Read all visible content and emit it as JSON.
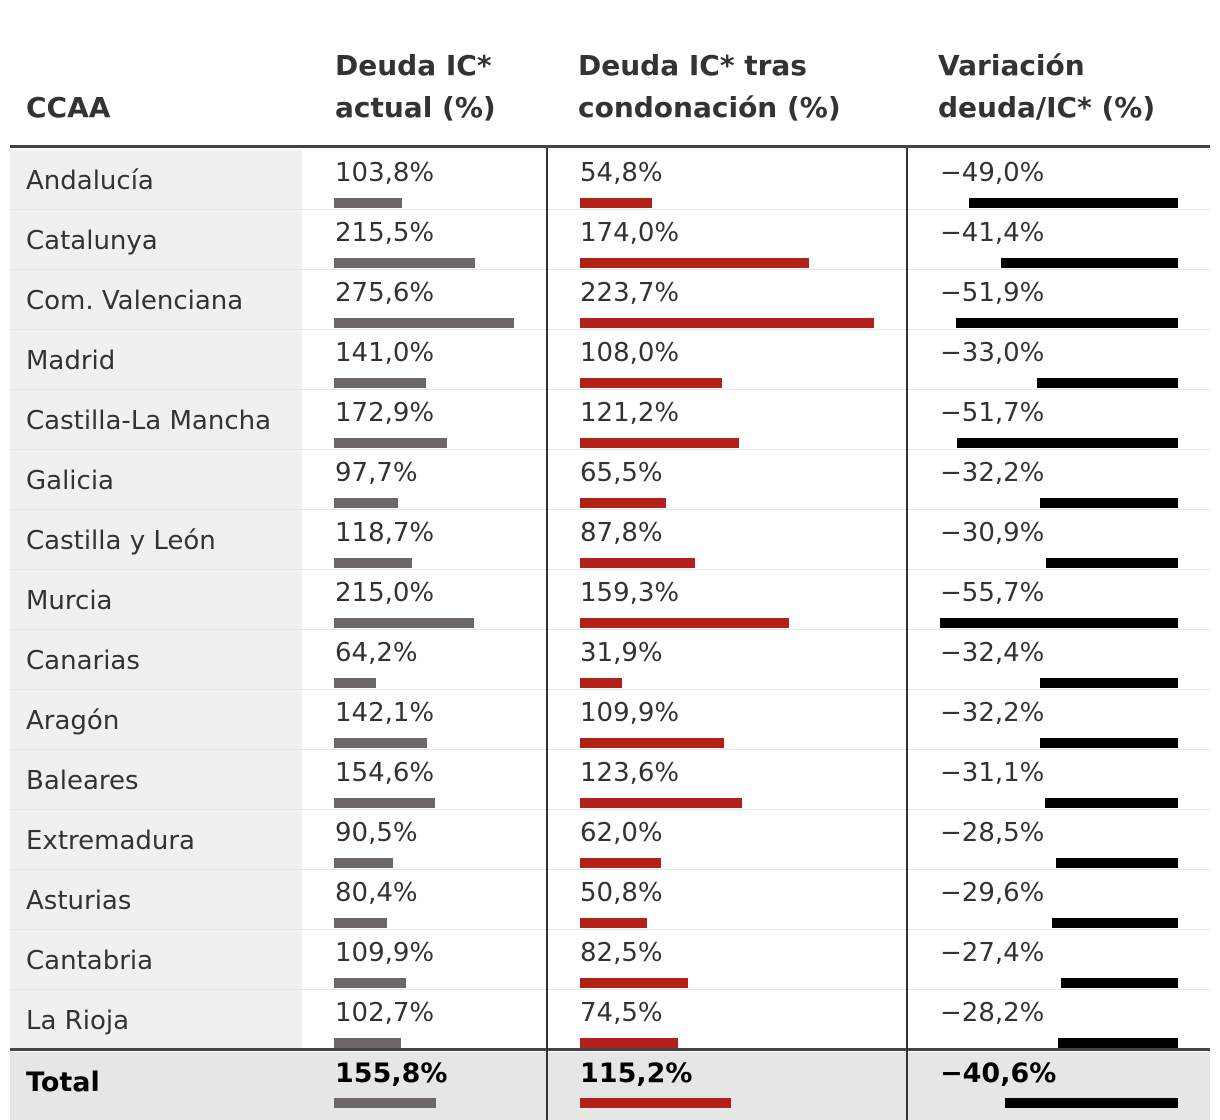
{
  "header": {
    "col_ccaa": "CCAA",
    "col_actual_l1": "Deuda IC*",
    "col_actual_l2": "actual (%)",
    "col_tras_l1": "Deuda IC* tras",
    "col_tras_l2": "condonación (%)",
    "col_var_l1": "Variación",
    "col_var_l2": "deuda/IC* (%)"
  },
  "colors": {
    "actual": "#6d6868",
    "tras": "#b3201a",
    "variacion": "#000000"
  },
  "chart_data": {
    "type": "table",
    "columns": [
      "CCAA",
      "Deuda IC* actual (%)",
      "Deuda IC* tras condonación (%)",
      "Variación deuda/IC* (%)"
    ],
    "rows": [
      {
        "ccaa": "Andalucía",
        "actual": 103.8,
        "actual_label": "103,8%",
        "tras": 54.8,
        "tras_label": "54,8%",
        "variacion": -49.0,
        "variacion_label": "−49,0%"
      },
      {
        "ccaa": "Catalunya",
        "actual": 215.5,
        "actual_label": "215,5%",
        "tras": 174.0,
        "tras_label": "174,0%",
        "variacion": -41.4,
        "variacion_label": "−41,4%"
      },
      {
        "ccaa": "Com. Valenciana",
        "actual": 275.6,
        "actual_label": "275,6%",
        "tras": 223.7,
        "tras_label": "223,7%",
        "variacion": -51.9,
        "variacion_label": "−51,9%"
      },
      {
        "ccaa": "Madrid",
        "actual": 141.0,
        "actual_label": "141,0%",
        "tras": 108.0,
        "tras_label": "108,0%",
        "variacion": -33.0,
        "variacion_label": "−33,0%"
      },
      {
        "ccaa": "Castilla-La Mancha",
        "actual": 172.9,
        "actual_label": "172,9%",
        "tras": 121.2,
        "tras_label": "121,2%",
        "variacion": -51.7,
        "variacion_label": "−51,7%"
      },
      {
        "ccaa": "Galicia",
        "actual": 97.7,
        "actual_label": "97,7%",
        "tras": 65.5,
        "tras_label": "65,5%",
        "variacion": -32.2,
        "variacion_label": "−32,2%"
      },
      {
        "ccaa": "Castilla y León",
        "actual": 118.7,
        "actual_label": "118,7%",
        "tras": 87.8,
        "tras_label": "87,8%",
        "variacion": -30.9,
        "variacion_label": "−30,9%"
      },
      {
        "ccaa": "Murcia",
        "actual": 215.0,
        "actual_label": "215,0%",
        "tras": 159.3,
        "tras_label": "159,3%",
        "variacion": -55.7,
        "variacion_label": "−55,7%"
      },
      {
        "ccaa": "Canarias",
        "actual": 64.2,
        "actual_label": "64,2%",
        "tras": 31.9,
        "tras_label": "31,9%",
        "variacion": -32.4,
        "variacion_label": "−32,4%"
      },
      {
        "ccaa": "Aragón",
        "actual": 142.1,
        "actual_label": "142,1%",
        "tras": 109.9,
        "tras_label": "109,9%",
        "variacion": -32.2,
        "variacion_label": "−32,2%"
      },
      {
        "ccaa": "Baleares",
        "actual": 154.6,
        "actual_label": "154,6%",
        "tras": 123.6,
        "tras_label": "123,6%",
        "variacion": -31.1,
        "variacion_label": "−31,1%"
      },
      {
        "ccaa": "Extremadura",
        "actual": 90.5,
        "actual_label": "90,5%",
        "tras": 62.0,
        "tras_label": "62,0%",
        "variacion": -28.5,
        "variacion_label": "−28,5%"
      },
      {
        "ccaa": "Asturias",
        "actual": 80.4,
        "actual_label": "80,4%",
        "tras": 50.8,
        "tras_label": "50,8%",
        "variacion": -29.6,
        "variacion_label": "−29,6%"
      },
      {
        "ccaa": "Cantabria",
        "actual": 109.9,
        "actual_label": "109,9%",
        "tras": 82.5,
        "tras_label": "82,5%",
        "variacion": -27.4,
        "variacion_label": "−27,4%"
      },
      {
        "ccaa": "La Rioja",
        "actual": 102.7,
        "actual_label": "102,7%",
        "tras": 74.5,
        "tras_label": "74,5%",
        "variacion": -28.2,
        "variacion_label": "−28,2%"
      }
    ],
    "total": {
      "ccaa": "Total",
      "actual": 155.8,
      "actual_label": "155,8%",
      "tras": 115.2,
      "tras_label": "115,2%",
      "variacion": -40.6,
      "variacion_label": "−40,6%"
    }
  }
}
